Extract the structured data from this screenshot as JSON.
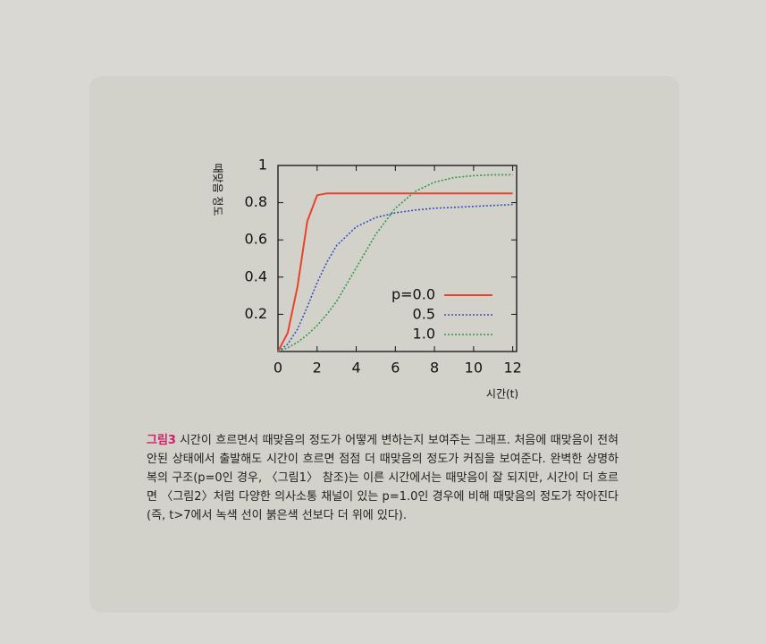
{
  "chart_data": {
    "type": "line",
    "y_label": "때맞음 정도",
    "x_label": "시간(t)",
    "x": [
      0,
      0.5,
      1,
      1.5,
      2,
      2.5,
      3,
      4,
      5,
      6,
      7,
      8,
      9,
      10,
      11,
      12
    ],
    "series": [
      {
        "name": "p=0.0",
        "color": "#e8432a",
        "dash": "solid",
        "values": [
          0,
          0.1,
          0.35,
          0.7,
          0.84,
          0.85,
          0.85,
          0.85,
          0.85,
          0.85,
          0.85,
          0.85,
          0.85,
          0.85,
          0.85,
          0.85
        ]
      },
      {
        "name": "0.5",
        "color": "#3a4fc0",
        "dash": "dotted",
        "values": [
          0,
          0.04,
          0.12,
          0.24,
          0.37,
          0.48,
          0.57,
          0.67,
          0.72,
          0.745,
          0.76,
          0.77,
          0.775,
          0.78,
          0.785,
          0.79
        ]
      },
      {
        "name": "1.0",
        "color": "#2f9a4a",
        "dash": "dotted",
        "values": [
          0,
          0.02,
          0.05,
          0.09,
          0.14,
          0.2,
          0.27,
          0.45,
          0.63,
          0.77,
          0.86,
          0.91,
          0.935,
          0.945,
          0.95,
          0.95
        ]
      }
    ],
    "xlim": [
      0,
      12.2
    ],
    "ylim": [
      0,
      1
    ],
    "xticks": [
      0,
      2,
      4,
      6,
      8,
      10,
      12
    ],
    "yticks": [
      0.2,
      0.4,
      0.6,
      0.8,
      1
    ],
    "legend": "lower-right"
  },
  "caption": {
    "label": "그림3",
    "text": "시간이 흐르면서 때맞음의 정도가 어떻게 변하는지 보여주는 그래프. 처음에 때맞음이 전혀 안된 상태에서 출발해도 시간이 흐르면 점점 더 때맞음의 정도가 커짐을 보여준다. 완벽한 상명하복의 구조(p=0인 경우, 〈그림1〉 참조)는 이른 시간에서는 때맞음이 잘 되지만, 시간이 더 흐르면 〈그림2〉처럼 다양한 의사소통 채널이 있는 p=1.0인 경우에 비해 때맞음의 정도가 작아진다(즉, t>7에서 녹색 선이 붉은색 선보다 더 위에 있다)."
  }
}
